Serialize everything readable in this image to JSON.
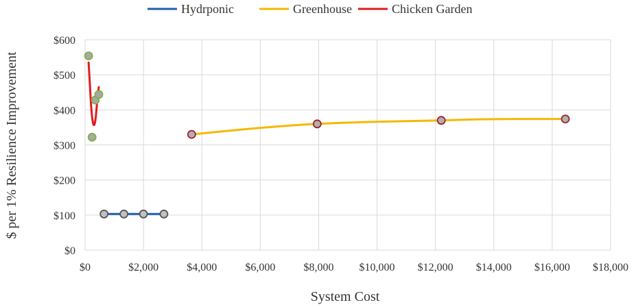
{
  "chart_data": {
    "type": "scatter",
    "title": "",
    "xlabel": "System Cost",
    "ylabel": "$ per 1% Resilience Improvement",
    "xlim": [
      0,
      18000
    ],
    "ylim": [
      0,
      600
    ],
    "x_ticks": [
      0,
      2000,
      4000,
      6000,
      8000,
      10000,
      12000,
      14000,
      16000,
      18000
    ],
    "x_tick_labels": [
      "$0",
      "$2,000",
      "$4,000",
      "$6,000",
      "$8,000",
      "$10,000",
      "$12,000",
      "$14,000",
      "$16,000",
      "$18,000"
    ],
    "y_ticks": [
      0,
      100,
      200,
      300,
      400,
      500,
      600
    ],
    "y_tick_labels": [
      "$0",
      "$100",
      "$200",
      "$300",
      "$400",
      "$500",
      "$600"
    ],
    "grid": true,
    "legend_position": "top",
    "series": [
      {
        "name": "Hydrponic",
        "color": "#1f5fb0",
        "marker_fill": "#c0c0c0",
        "marker_edge": "#555555",
        "points": [
          [
            650,
            103
          ],
          [
            1330,
            103
          ],
          [
            2000,
            103
          ],
          [
            2700,
            103
          ]
        ],
        "curve": [
          [
            650,
            103
          ],
          [
            2700,
            103
          ]
        ]
      },
      {
        "name": "Greenhouse",
        "color": "#f5b800",
        "marker_fill": "#b0b0b0",
        "marker_edge": "#a0202a",
        "points": [
          [
            3650,
            330
          ],
          [
            7950,
            360
          ],
          [
            12200,
            370
          ],
          [
            16450,
            374
          ]
        ],
        "curve": [
          [
            3650,
            330
          ],
          [
            5000,
            341
          ],
          [
            6500,
            352
          ],
          [
            7950,
            360
          ],
          [
            9500,
            365
          ],
          [
            11000,
            368
          ],
          [
            12200,
            370
          ],
          [
            13500,
            373
          ],
          [
            15000,
            374
          ],
          [
            16450,
            374
          ]
        ]
      },
      {
        "name": "Chicken Garden",
        "color": "#e31a1c",
        "marker_fill": "#a8a8a8",
        "marker_edge": "#7cb342",
        "points": [
          [
            120,
            554
          ],
          [
            240,
            322
          ],
          [
            350,
            428
          ],
          [
            470,
            444
          ]
        ],
        "curve": [
          [
            120,
            535
          ],
          [
            160,
            480
          ],
          [
            200,
            420
          ],
          [
            240,
            380
          ],
          [
            280,
            360
          ],
          [
            320,
            358
          ],
          [
            360,
            375
          ],
          [
            400,
            410
          ],
          [
            440,
            445
          ],
          [
            470,
            465
          ]
        ]
      }
    ]
  }
}
